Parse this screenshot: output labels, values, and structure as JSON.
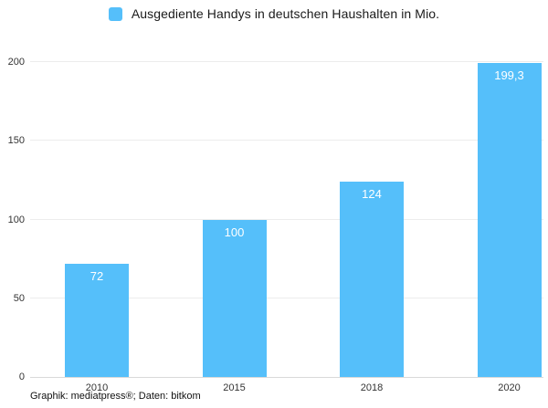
{
  "chart_data": {
    "type": "bar",
    "title": "Ausgediente Handys in deutschen Haushalten in Mio.",
    "categories": [
      "2010",
      "2015",
      "2018",
      "2020"
    ],
    "values": [
      72,
      100,
      124,
      199.3
    ],
    "value_labels": [
      "72",
      "100",
      "124",
      "199,3"
    ],
    "xlabel": "",
    "ylabel": "",
    "ylim": [
      0,
      200
    ],
    "yticks": [
      0,
      50,
      100,
      150,
      200
    ],
    "grid": true,
    "legend_position": "top-center",
    "bar_color": "#55BFFA",
    "value_label_color": "#ffffff"
  },
  "footer": {
    "credit": "Graphik: mediatpress®; Daten: bitkom"
  },
  "colors": {
    "accent": "#55BFFA",
    "gridline": "#ececec",
    "axis_line": "#d9d9d9",
    "tick_text": "#333333"
  }
}
